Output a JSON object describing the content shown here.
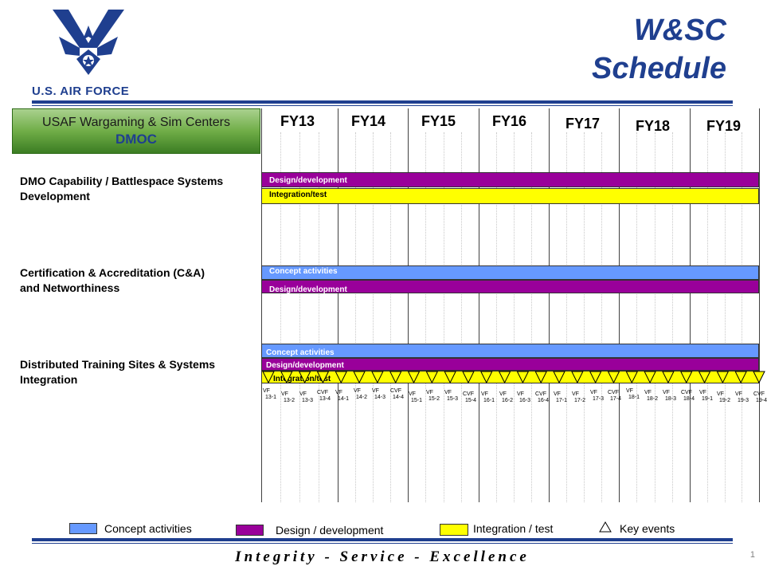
{
  "header": {
    "title_line1": "W&SC",
    "title_line2": "Schedule",
    "logo_text": "U.S. AIR FORCE"
  },
  "brand": {
    "navy": "#1f3f8f",
    "purple": "#99009a",
    "yellow": "#ffff00",
    "blue": "#6699ff"
  },
  "org_box": {
    "title": "USAF Wargaming & Sim Centers",
    "subtitle": "DMOC"
  },
  "fiscal_years": [
    "FY13",
    "FY14",
    "FY15",
    "FY16",
    "FY17",
    "FY18",
    "FY19"
  ],
  "sections": [
    {
      "label_line1": "DMO Capability / Battlespace Systems",
      "label_line2": "Development",
      "bars": [
        {
          "label": "Design/development",
          "phase": "design"
        },
        {
          "label": "Integration/test",
          "phase": "integration"
        }
      ]
    },
    {
      "label_line1": "Certification & Accreditation (C&A)",
      "label_line2": "and Networthiness",
      "bars": [
        {
          "label": "Concept activities",
          "phase": "concept"
        },
        {
          "label": "Design/development",
          "phase": "design"
        }
      ]
    },
    {
      "label_line1": "Distributed Training Sites & Systems",
      "label_line2": "Integration",
      "bars": [
        {
          "label": "Concept activities",
          "phase": "concept"
        },
        {
          "label": "Design/development",
          "phase": "design"
        },
        {
          "label": "Integration/test",
          "phase": "integration"
        }
      ]
    }
  ],
  "events": [
    {
      "l1": "VF",
      "l2": "13-1"
    },
    {
      "l1": "VF",
      "l2": "13-2"
    },
    {
      "l1": "VF",
      "l2": "13-3"
    },
    {
      "l1": "CVF",
      "l2": "13-4"
    },
    {
      "l1": "VF",
      "l2": "14-1"
    },
    {
      "l1": "VF",
      "l2": "14-2"
    },
    {
      "l1": "VF",
      "l2": "14-3"
    },
    {
      "l1": "CVF",
      "l2": "14-4"
    },
    {
      "l1": "VF",
      "l2": "15-1"
    },
    {
      "l1": "VF",
      "l2": "15-2"
    },
    {
      "l1": "VF",
      "l2": "15-3"
    },
    {
      "l1": "CVF",
      "l2": "15-4"
    },
    {
      "l1": "VF",
      "l2": "16-1"
    },
    {
      "l1": "VF",
      "l2": "16-2"
    },
    {
      "l1": "VF",
      "l2": "16-3"
    },
    {
      "l1": "CVF",
      "l2": "16-4"
    },
    {
      "l1": "VF",
      "l2": "17-1"
    },
    {
      "l1": "VF",
      "l2": "17-2"
    },
    {
      "l1": "VF",
      "l2": "17-3"
    },
    {
      "l1": "CVF",
      "l2": "17-4"
    },
    {
      "l1": "VF",
      "l2": "18-1"
    },
    {
      "l1": "VF",
      "l2": "18-2"
    },
    {
      "l1": "VF",
      "l2": "18-3"
    },
    {
      "l1": "CVF",
      "l2": "18-4"
    },
    {
      "l1": "VF",
      "l2": "19-1"
    },
    {
      "l1": "VF",
      "l2": "19-2"
    },
    {
      "l1": "VF",
      "l2": "19-3"
    },
    {
      "l1": "CVF",
      "l2": "19-4"
    }
  ],
  "legend": [
    {
      "label": "Concept activities",
      "phase": "concept"
    },
    {
      "label": "Design / development",
      "phase": "design"
    },
    {
      "label": "Integration  / test",
      "phase": "integration"
    },
    {
      "label": "Key events",
      "phase": "event"
    }
  ],
  "footer": {
    "motto": "Integrity - Service - Excellence",
    "page_number": "1"
  }
}
